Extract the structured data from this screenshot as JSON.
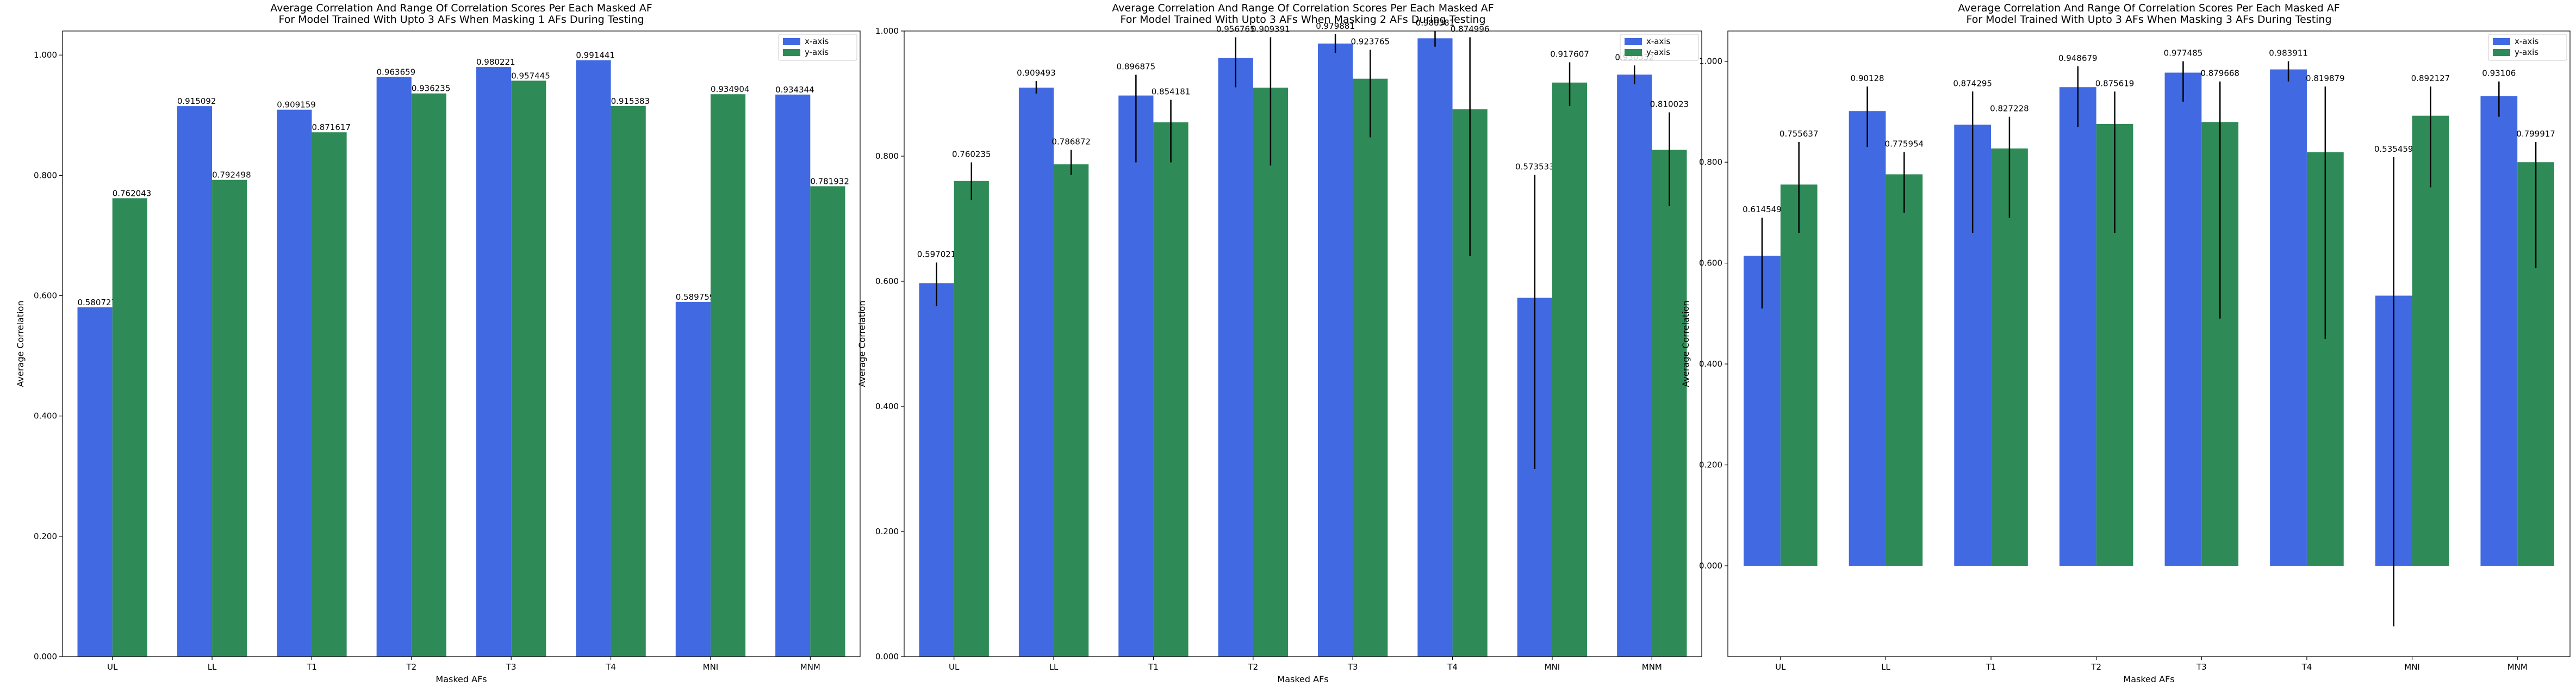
{
  "colors": {
    "x_axis": "#4169e1",
    "y_axis": "#2e8b57",
    "error": "#000000"
  },
  "chart_data": [
    {
      "type": "bar",
      "title": "Average Correlation And Range Of Correlation Scores Per Each Masked AF",
      "subtitle": "For Model Trained With Upto 3 AFs When Masking 1 AFs During Testing",
      "xlabel": "Masked AFs",
      "ylabel": "Average Correlation",
      "ylim": [
        0,
        1.04
      ],
      "yticks": [
        0,
        0.2,
        0.4,
        0.6,
        0.8,
        1.0
      ],
      "ytick_labels": [
        "0.000",
        "0.200",
        "0.400",
        "0.600",
        "0.800",
        "1.000"
      ],
      "categories": [
        "UL",
        "LL",
        "T1",
        "T2",
        "T3",
        "T4",
        "MNI",
        "MNM"
      ],
      "legend": "top-right",
      "series": [
        {
          "name": "x-axis",
          "values": [
            0.580727,
            0.915092,
            0.909159,
            0.963659,
            0.980221,
            0.991441,
            0.589759,
            0.934344
          ],
          "labels": [
            "0.580727",
            "0.915092",
            "0.909159",
            "0.963659",
            "0.980221",
            "0.991441",
            "0.589759",
            "0.934344"
          ]
        },
        {
          "name": "y-axis",
          "values": [
            0.762043,
            0.792498,
            0.871617,
            0.936235,
            0.957445,
            0.915383,
            0.934904,
            0.781932
          ],
          "labels": [
            "0.762043",
            "0.792498",
            "0.871617",
            "0.936235",
            "0.957445",
            "0.915383",
            "0.934904",
            "0.781932"
          ]
        }
      ]
    },
    {
      "type": "bar",
      "title": "Average Correlation And Range Of Correlation Scores Per Each Masked AF",
      "subtitle": "For Model Trained With Upto 3 AFs When Masking 2 AFs During Testing",
      "xlabel": "Masked AFs",
      "ylabel": "Average Correlation",
      "ylim": [
        0,
        1.0
      ],
      "yticks": [
        0,
        0.2,
        0.4,
        0.6,
        0.8,
        1.0
      ],
      "ytick_labels": [
        "0.000",
        "0.200",
        "0.400",
        "0.600",
        "0.800",
        "1.000"
      ],
      "categories": [
        "UL",
        "LL",
        "T1",
        "T2",
        "T3",
        "T4",
        "MNI",
        "MNM"
      ],
      "legend": "top-right",
      "series": [
        {
          "name": "x-axis",
          "values": [
            0.597021,
            0.909493,
            0.896875,
            0.956765,
            0.979881,
            0.988381,
            0.573533,
            0.930332
          ],
          "labels": [
            "0.597021",
            "0.909493",
            "0.896875",
            "0.956765",
            "0.979881",
            "0.988381",
            "0.573533",
            "0.930332"
          ],
          "err_low": [
            0.56,
            0.9,
            0.79,
            0.91,
            0.965,
            0.975,
            0.3,
            0.915
          ],
          "err_high": [
            0.63,
            0.92,
            0.93,
            0.99,
            0.995,
            1.0,
            0.77,
            0.945
          ]
        },
        {
          "name": "y-axis",
          "values": [
            0.760235,
            0.786872,
            0.854181,
            0.909391,
            0.923765,
            0.874996,
            0.917607,
            0.810023
          ],
          "labels": [
            "0.760235",
            "0.786872",
            "0.854181",
            "0.909391",
            "0.923765",
            "0.874996",
            "0.917607",
            "0.810023"
          ],
          "err_low": [
            0.73,
            0.77,
            0.79,
            0.785,
            0.83,
            0.64,
            0.88,
            0.72
          ],
          "err_high": [
            0.79,
            0.81,
            0.89,
            0.99,
            0.97,
            0.99,
            0.95,
            0.87
          ]
        }
      ]
    },
    {
      "type": "bar",
      "title": "Average Correlation And Range Of Correlation Scores Per Each Masked AF",
      "subtitle": "For Model Trained With Upto 3 AFs When Masking 3 AFs During Testing",
      "xlabel": "Masked AFs",
      "ylabel": "Average Correlation",
      "ylim": [
        -0.18,
        1.06
      ],
      "yticks": [
        0,
        0.2,
        0.4,
        0.6,
        0.8,
        1.0
      ],
      "ytick_labels": [
        "0.000",
        "0.200",
        "0.400",
        "0.600",
        "0.800",
        "1.000"
      ],
      "categories": [
        "UL",
        "LL",
        "T1",
        "T2",
        "T3",
        "T4",
        "MNI",
        "MNM"
      ],
      "legend": "top-right",
      "series": [
        {
          "name": "x-axis",
          "values": [
            0.614549,
            0.90128,
            0.874295,
            0.948679,
            0.977485,
            0.983911,
            0.535459,
            0.93106
          ],
          "labels": [
            "0.614549",
            "0.90128",
            "0.874295",
            "0.948679",
            "0.977485",
            "0.983911",
            "0.535459",
            "0.93106"
          ],
          "err_low": [
            0.51,
            0.83,
            0.66,
            0.87,
            0.92,
            0.96,
            -0.12,
            0.89
          ],
          "err_high": [
            0.69,
            0.95,
            0.94,
            0.99,
            1.0,
            1.0,
            0.81,
            0.96
          ]
        },
        {
          "name": "y-axis",
          "values": [
            0.755637,
            0.775954,
            0.827228,
            0.875619,
            0.879668,
            0.819879,
            0.892127,
            0.799917
          ],
          "labels": [
            "0.755637",
            "0.775954",
            "0.827228",
            "0.875619",
            "0.879668",
            "0.819879",
            "0.892127",
            "0.799917"
          ],
          "err_low": [
            0.66,
            0.7,
            0.69,
            0.66,
            0.49,
            0.45,
            0.75,
            0.59
          ],
          "err_high": [
            0.84,
            0.82,
            0.89,
            0.94,
            0.96,
            0.95,
            0.95,
            0.84
          ]
        }
      ]
    }
  ]
}
